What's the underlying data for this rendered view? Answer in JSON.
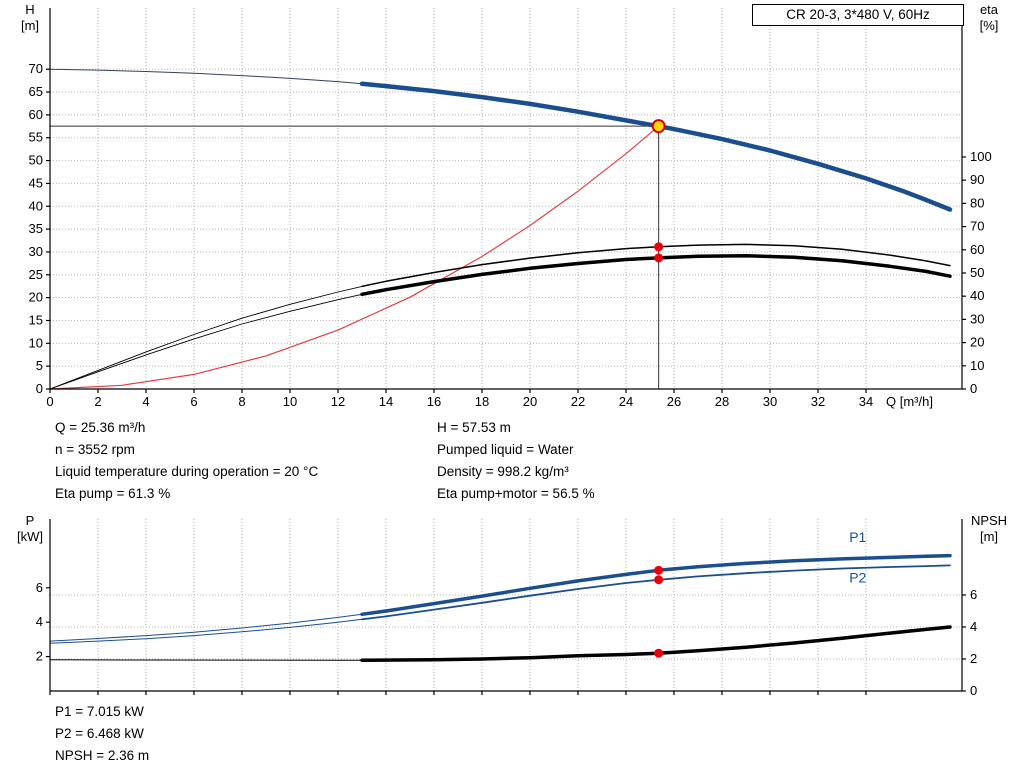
{
  "title_box": "CR 20-3, 3*480 V, 60Hz",
  "info_top": {
    "left": [
      "Q = 25.36 m³/h",
      "n = 3552 rpm",
      "Liquid temperature during operation = 20 °C",
      "Eta pump = 61.3 %"
    ],
    "right": [
      "H = 57.53 m",
      "Pumped liquid = Water",
      "Density = 998.2 kg/m³",
      "Eta pump+motor = 56.5 %"
    ]
  },
  "info_bottom": [
    "P1 = 7.015 kW",
    "P2 = 6.468 kW",
    "NPSH = 2.36 m"
  ],
  "colors": {
    "curve_blue": "#1b4e8f",
    "marker_red": "#e8000b",
    "duty_yellow": "#ffd400",
    "system_red": "#e04040"
  },
  "chart_data": [
    {
      "id": "head_eta",
      "type": "line",
      "title": "CR 20-3, 3*480 V, 60Hz",
      "xlabel": "Q [m³/h]",
      "left_title": [
        "H",
        "[m]"
      ],
      "right_title": [
        "eta",
        "[%]"
      ],
      "xlim": [
        0,
        38
      ],
      "ylim_left": [
        0,
        83.4
      ],
      "ylim_right": [
        0,
        164.2
      ],
      "xticks": [
        0,
        2,
        4,
        6,
        8,
        10,
        12,
        14,
        16,
        18,
        20,
        22,
        24,
        26,
        28,
        30,
        32,
        34
      ],
      "yticks_left": [
        0,
        5,
        10,
        15,
        20,
        25,
        30,
        35,
        40,
        45,
        50,
        55,
        60,
        65,
        70
      ],
      "yticks_right": [
        0,
        10,
        20,
        30,
        40,
        50,
        60,
        70,
        80,
        90,
        100
      ],
      "show_xtick_labels": true,
      "grid_y": "left",
      "series": [
        {
          "name": "system-curve",
          "axis": "left",
          "color": "#e04040",
          "width": 1.2,
          "split_x": null,
          "points": [
            [
              0,
              0
            ],
            [
              3,
              0.8
            ],
            [
              6,
              3.2
            ],
            [
              9,
              7.25
            ],
            [
              12,
              12.9
            ],
            [
              15,
              20.1
            ],
            [
              18,
              29.0
            ],
            [
              20,
              35.8
            ],
            [
              22,
              43.3
            ],
            [
              24,
              51.5
            ],
            [
              25.36,
              57.53
            ]
          ]
        },
        {
          "name": "head",
          "axis": "left",
          "color": "#1b4e8f",
          "thin_color": "#31415f",
          "thin_width": 1,
          "width": 4.5,
          "split_x": 13,
          "points": [
            [
              0,
              70
            ],
            [
              2,
              69.8
            ],
            [
              4,
              69.5
            ],
            [
              6,
              69.1
            ],
            [
              8,
              68.6
            ],
            [
              10,
              68.0
            ],
            [
              12,
              67.3
            ],
            [
              13,
              66.8
            ],
            [
              14,
              66.3
            ],
            [
              16,
              65.2
            ],
            [
              18,
              63.9
            ],
            [
              20,
              62.4
            ],
            [
              22,
              60.7
            ],
            [
              24,
              58.8
            ],
            [
              25.36,
              57.53
            ],
            [
              26,
              56.9
            ],
            [
              28,
              54.7
            ],
            [
              30,
              52.2
            ],
            [
              32,
              49.3
            ],
            [
              34,
              46.1
            ],
            [
              35.5,
              43.4
            ],
            [
              36.5,
              41.4
            ],
            [
              37.5,
              39.3
            ]
          ]
        },
        {
          "name": "eta-pump",
          "axis": "right",
          "color": "#000000",
          "thin_width": 0.9,
          "width": 1.5,
          "split_x": 13,
          "points": [
            [
              0,
              0
            ],
            [
              2,
              8
            ],
            [
              4,
              16
            ],
            [
              6,
              23.5
            ],
            [
              8,
              30.5
            ],
            [
              10,
              36.5
            ],
            [
              12,
              41.8
            ],
            [
              13,
              44.2
            ],
            [
              14,
              46.4
            ],
            [
              16,
              50.2
            ],
            [
              18,
              53.6
            ],
            [
              20,
              56.4
            ],
            [
              22,
              58.7
            ],
            [
              24,
              60.5
            ],
            [
              25.36,
              61.3
            ],
            [
              27,
              62.0
            ],
            [
              29,
              62.3
            ],
            [
              31,
              61.7
            ],
            [
              33,
              60.2
            ],
            [
              35,
              57.7
            ],
            [
              36.5,
              55.2
            ],
            [
              37.5,
              53.2
            ]
          ]
        },
        {
          "name": "eta-pump-motor",
          "axis": "right",
          "color": "#000000",
          "thin_width": 0.9,
          "width": 3.5,
          "split_x": 13,
          "points": [
            [
              0,
              0
            ],
            [
              2,
              7.4
            ],
            [
              4,
              14.7
            ],
            [
              6,
              21.6
            ],
            [
              8,
              28.0
            ],
            [
              10,
              33.5
            ],
            [
              12,
              38.5
            ],
            [
              13,
              40.8
            ],
            [
              14,
              42.8
            ],
            [
              16,
              46.3
            ],
            [
              18,
              49.4
            ],
            [
              20,
              52.0
            ],
            [
              22,
              54.1
            ],
            [
              24,
              55.8
            ],
            [
              25.36,
              56.5
            ],
            [
              27,
              57.2
            ],
            [
              29,
              57.4
            ],
            [
              31,
              56.8
            ],
            [
              33,
              55.3
            ],
            [
              35,
              52.9
            ],
            [
              36.5,
              50.7
            ],
            [
              37.5,
              48.6
            ]
          ]
        }
      ],
      "duty_point": {
        "x": 25.36,
        "y": 57.53,
        "axis": "left"
      },
      "markers": [
        {
          "x": 25.36,
          "y": 61.3,
          "axis": "right"
        },
        {
          "x": 25.36,
          "y": 56.5,
          "axis": "right"
        }
      ],
      "labels": []
    },
    {
      "id": "power_npsh",
      "type": "line",
      "title": "",
      "xlabel": "",
      "left_title": [
        "P",
        "[kW]"
      ],
      "right_title": [
        "NPSH",
        "[m]"
      ],
      "xlim": [
        0,
        38
      ],
      "ylim_left": [
        0,
        10
      ],
      "ylim_right": [
        0,
        10.75
      ],
      "xticks": [
        0,
        2,
        4,
        6,
        8,
        10,
        12,
        14,
        16,
        18,
        20,
        22,
        24,
        26,
        28,
        30,
        32,
        34
      ],
      "yticks_left": [
        2,
        4,
        6
      ],
      "yticks_right": [
        0,
        2,
        4,
        6
      ],
      "show_xtick_labels": false,
      "grid_y": "right",
      "series": [
        {
          "name": "p1",
          "axis": "left",
          "color": "#1b4e8f",
          "thin_width": 1,
          "width": 3.5,
          "split_x": 13,
          "points": [
            [
              0,
              2.9
            ],
            [
              2,
              3.05
            ],
            [
              4,
              3.22
            ],
            [
              6,
              3.42
            ],
            [
              8,
              3.66
            ],
            [
              10,
              3.95
            ],
            [
              12,
              4.28
            ],
            [
              13,
              4.46
            ],
            [
              14,
              4.65
            ],
            [
              16,
              5.08
            ],
            [
              18,
              5.52
            ],
            [
              20,
              5.97
            ],
            [
              22,
              6.4
            ],
            [
              24,
              6.78
            ],
            [
              25.36,
              7.015
            ],
            [
              27,
              7.22
            ],
            [
              29,
              7.42
            ],
            [
              31,
              7.57
            ],
            [
              33,
              7.68
            ],
            [
              35,
              7.77
            ],
            [
              36.5,
              7.83
            ],
            [
              37.5,
              7.87
            ]
          ]
        },
        {
          "name": "p2",
          "axis": "left",
          "color": "#1b4e8f",
          "thin_width": 1,
          "width": 1.8,
          "split_x": 13,
          "points": [
            [
              0,
              2.78
            ],
            [
              2,
              2.9
            ],
            [
              4,
              3.04
            ],
            [
              6,
              3.22
            ],
            [
              8,
              3.44
            ],
            [
              10,
              3.7
            ],
            [
              12,
              4.0
            ],
            [
              13,
              4.17
            ],
            [
              14,
              4.34
            ],
            [
              16,
              4.73
            ],
            [
              18,
              5.13
            ],
            [
              20,
              5.54
            ],
            [
              22,
              5.93
            ],
            [
              24,
              6.28
            ],
            [
              25.36,
              6.468
            ],
            [
              27,
              6.66
            ],
            [
              29,
              6.85
            ],
            [
              31,
              7.0
            ],
            [
              33,
              7.12
            ],
            [
              35,
              7.21
            ],
            [
              36.5,
              7.26
            ],
            [
              37.5,
              7.3
            ]
          ]
        },
        {
          "name": "npsh",
          "axis": "right",
          "color": "#000000",
          "thin_width": 1,
          "width": 3.5,
          "split_x": 13,
          "points": [
            [
              0,
              1.95
            ],
            [
              4,
              1.94
            ],
            [
              8,
              1.93
            ],
            [
              12,
              1.92
            ],
            [
              13,
              1.92
            ],
            [
              16,
              1.95
            ],
            [
              18,
              2.0
            ],
            [
              20,
              2.08
            ],
            [
              22,
              2.2
            ],
            [
              24,
              2.28
            ],
            [
              25.36,
              2.36
            ],
            [
              27,
              2.52
            ],
            [
              29,
              2.74
            ],
            [
              31,
              3.0
            ],
            [
              33,
              3.3
            ],
            [
              35,
              3.62
            ],
            [
              36.5,
              3.85
            ],
            [
              37.5,
              4.0
            ]
          ]
        }
      ],
      "duty_point": null,
      "markers": [
        {
          "x": 25.36,
          "y": 7.015,
          "axis": "left"
        },
        {
          "x": 25.36,
          "y": 6.468,
          "axis": "left"
        },
        {
          "x": 25.36,
          "y": 2.36,
          "axis": "right"
        }
      ],
      "labels": [
        {
          "text": "P1",
          "x": 33.3,
          "y": 8.65,
          "axis": "left",
          "color": "#1b4e8f"
        },
        {
          "text": "P2",
          "x": 33.3,
          "y": 6.3,
          "axis": "left",
          "color": "#1b4e8f"
        }
      ]
    }
  ]
}
